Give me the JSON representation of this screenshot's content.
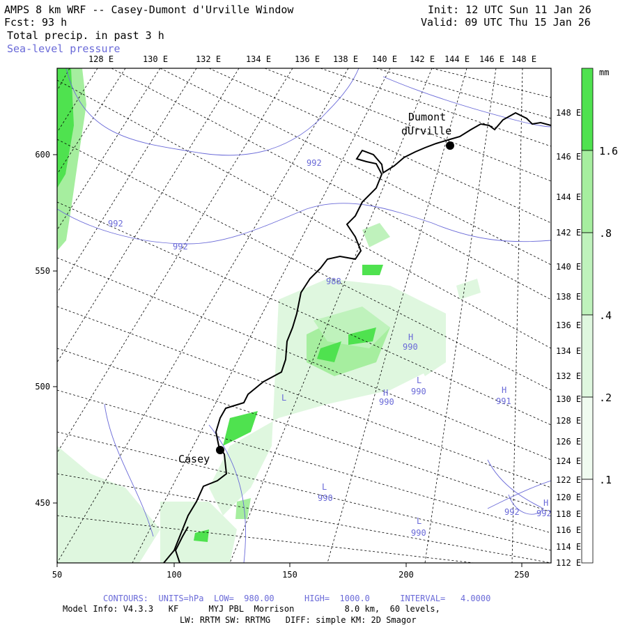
{
  "header": {
    "title": "AMPS 8 km WRF -- Casey-Dumont d'Urville Window",
    "fcst_label": "Fcst:",
    "fcst_hours": "93 h",
    "field": "Total precip. in past 3 h",
    "contour_field": "Sea-level pressure",
    "init": "Init: 12 UTC Sun 11 Jan 26",
    "valid": "Valid: 09 UTC Thu 15 Jan 26"
  },
  "map": {
    "top_lon_labels": [
      "128 E",
      "130 E",
      "132 E",
      "134 E",
      "136 E",
      "138 E",
      "140 E",
      "142 E",
      "144 E",
      "146 E",
      "148 E"
    ],
    "right_lon_labels": [
      "148 E",
      "146 E",
      "144 E",
      "142 E",
      "140 E",
      "138 E",
      "136 E",
      "134 E",
      "132 E",
      "130 E",
      "128 E",
      "126 E",
      "124 E",
      "122 E",
      "120 E",
      "118 E",
      "116 E",
      "114 E",
      "112 E"
    ],
    "x_ticks": [
      "50",
      "100",
      "150",
      "200",
      "250"
    ],
    "y_ticks": [
      "600",
      "550",
      "500",
      "450"
    ],
    "stations": [
      {
        "name_line1": "Dumont",
        "name_line2": "dUrville"
      },
      {
        "name_line1": "Casey"
      }
    ],
    "pressure_labels": [
      "992",
      "992",
      "992",
      "988",
      "990",
      "990",
      "990",
      "991",
      "990",
      "990",
      "992",
      "992"
    ],
    "pressure_centers": [
      "H",
      "H",
      "L",
      "H",
      "L",
      "L",
      "L",
      "H"
    ],
    "colors": {
      "precip_light": "#dff7df",
      "precip_mid": "#a6ee9f",
      "precip_strong": "#4fe24f",
      "contour": "#6a6ad8",
      "coast": "#000000"
    }
  },
  "colorbar": {
    "unit": "mm",
    "labels": [
      "1.6",
      ".8",
      ".4",
      ".2",
      ".1"
    ],
    "colors": [
      "#ffffff",
      "#f0fbf0",
      "#dff7df",
      "#bff2bc",
      "#a6ee9f",
      "#4fe24f"
    ]
  },
  "footer": {
    "contours": "CONTOURS:  UNITS=hPa  LOW=  980.00      HIGH=  1000.0      INTERVAL=   4.0000",
    "model_info": "Model Info: V4.3.3   KF      MYJ PBL  Morrison          8.0 km,  60 levels,",
    "physics": "LW: RRTM SW: RRTMG   DIFF: simple KM: 2D Smagor"
  }
}
